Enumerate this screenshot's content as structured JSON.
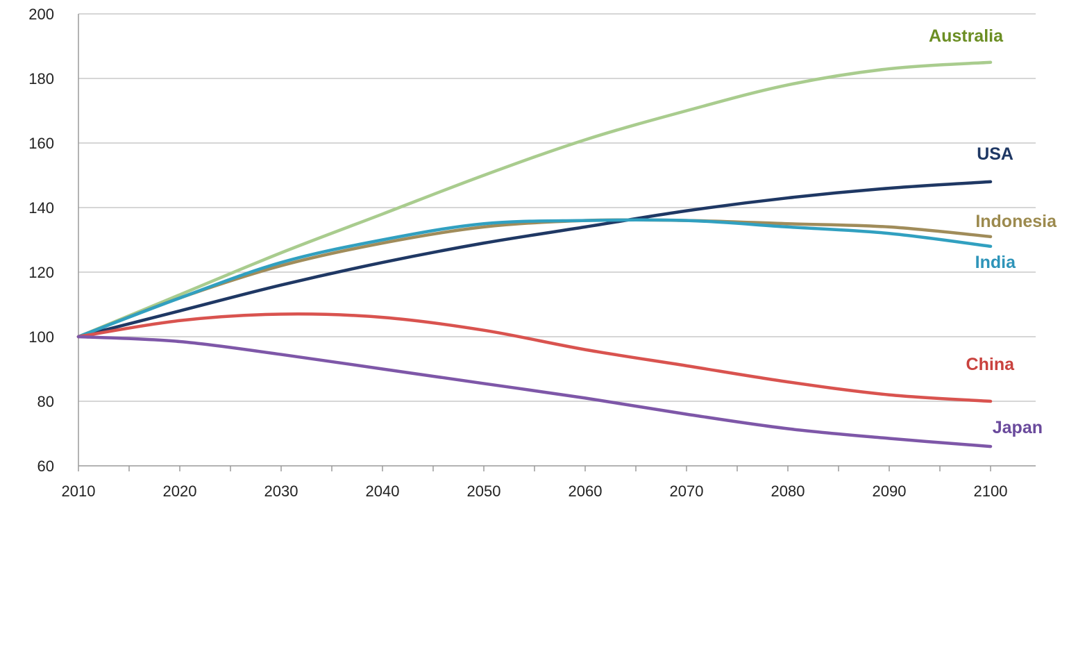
{
  "chart_data": {
    "type": "line",
    "title": "",
    "xlabel": "",
    "ylabel": "",
    "xlim": [
      2010,
      2100
    ],
    "ylim": [
      60,
      200
    ],
    "grid": true,
    "legend": "inline-end-labels",
    "x_ticks": [
      "2010",
      "2020",
      "2030",
      "2040",
      "2050",
      "2060",
      "2070",
      "2080",
      "2090",
      "2100"
    ],
    "y_ticks": [
      "60",
      "80",
      "100",
      "120",
      "140",
      "160",
      "180",
      "200"
    ],
    "x": [
      2010,
      2020,
      2030,
      2040,
      2050,
      2060,
      2070,
      2080,
      2090,
      2100
    ],
    "series": [
      {
        "name": "Australia",
        "color": "#a9cc8e",
        "label_color": "#6b8e23",
        "values": [
          100,
          113,
          126,
          138,
          150,
          161,
          170,
          178,
          183,
          185
        ]
      },
      {
        "name": "USA",
        "color": "#1f3864",
        "label_color": "#1f3864",
        "values": [
          100,
          108,
          116,
          123,
          129,
          134,
          139,
          143,
          146,
          148
        ]
      },
      {
        "name": "Indonesia",
        "color": "#a08c5a",
        "label_color": "#9c8a4e",
        "values": [
          100,
          112,
          122,
          129,
          134,
          136,
          136,
          135,
          134,
          131
        ]
      },
      {
        "name": "India",
        "color": "#31a0c0",
        "label_color": "#2e94b9",
        "values": [
          100,
          112,
          123,
          130,
          135,
          136,
          136,
          134,
          132,
          128
        ]
      },
      {
        "name": "China",
        "color": "#d9534f",
        "label_color": "#c9423e",
        "values": [
          100,
          105,
          107,
          106,
          102,
          96,
          91,
          86,
          82,
          80
        ]
      },
      {
        "name": "Japan",
        "color": "#7e57a8",
        "label_color": "#6a4a9c",
        "values": [
          100,
          98.5,
          94.5,
          90,
          85.5,
          81,
          76,
          71.5,
          68.5,
          66
        ]
      }
    ]
  }
}
